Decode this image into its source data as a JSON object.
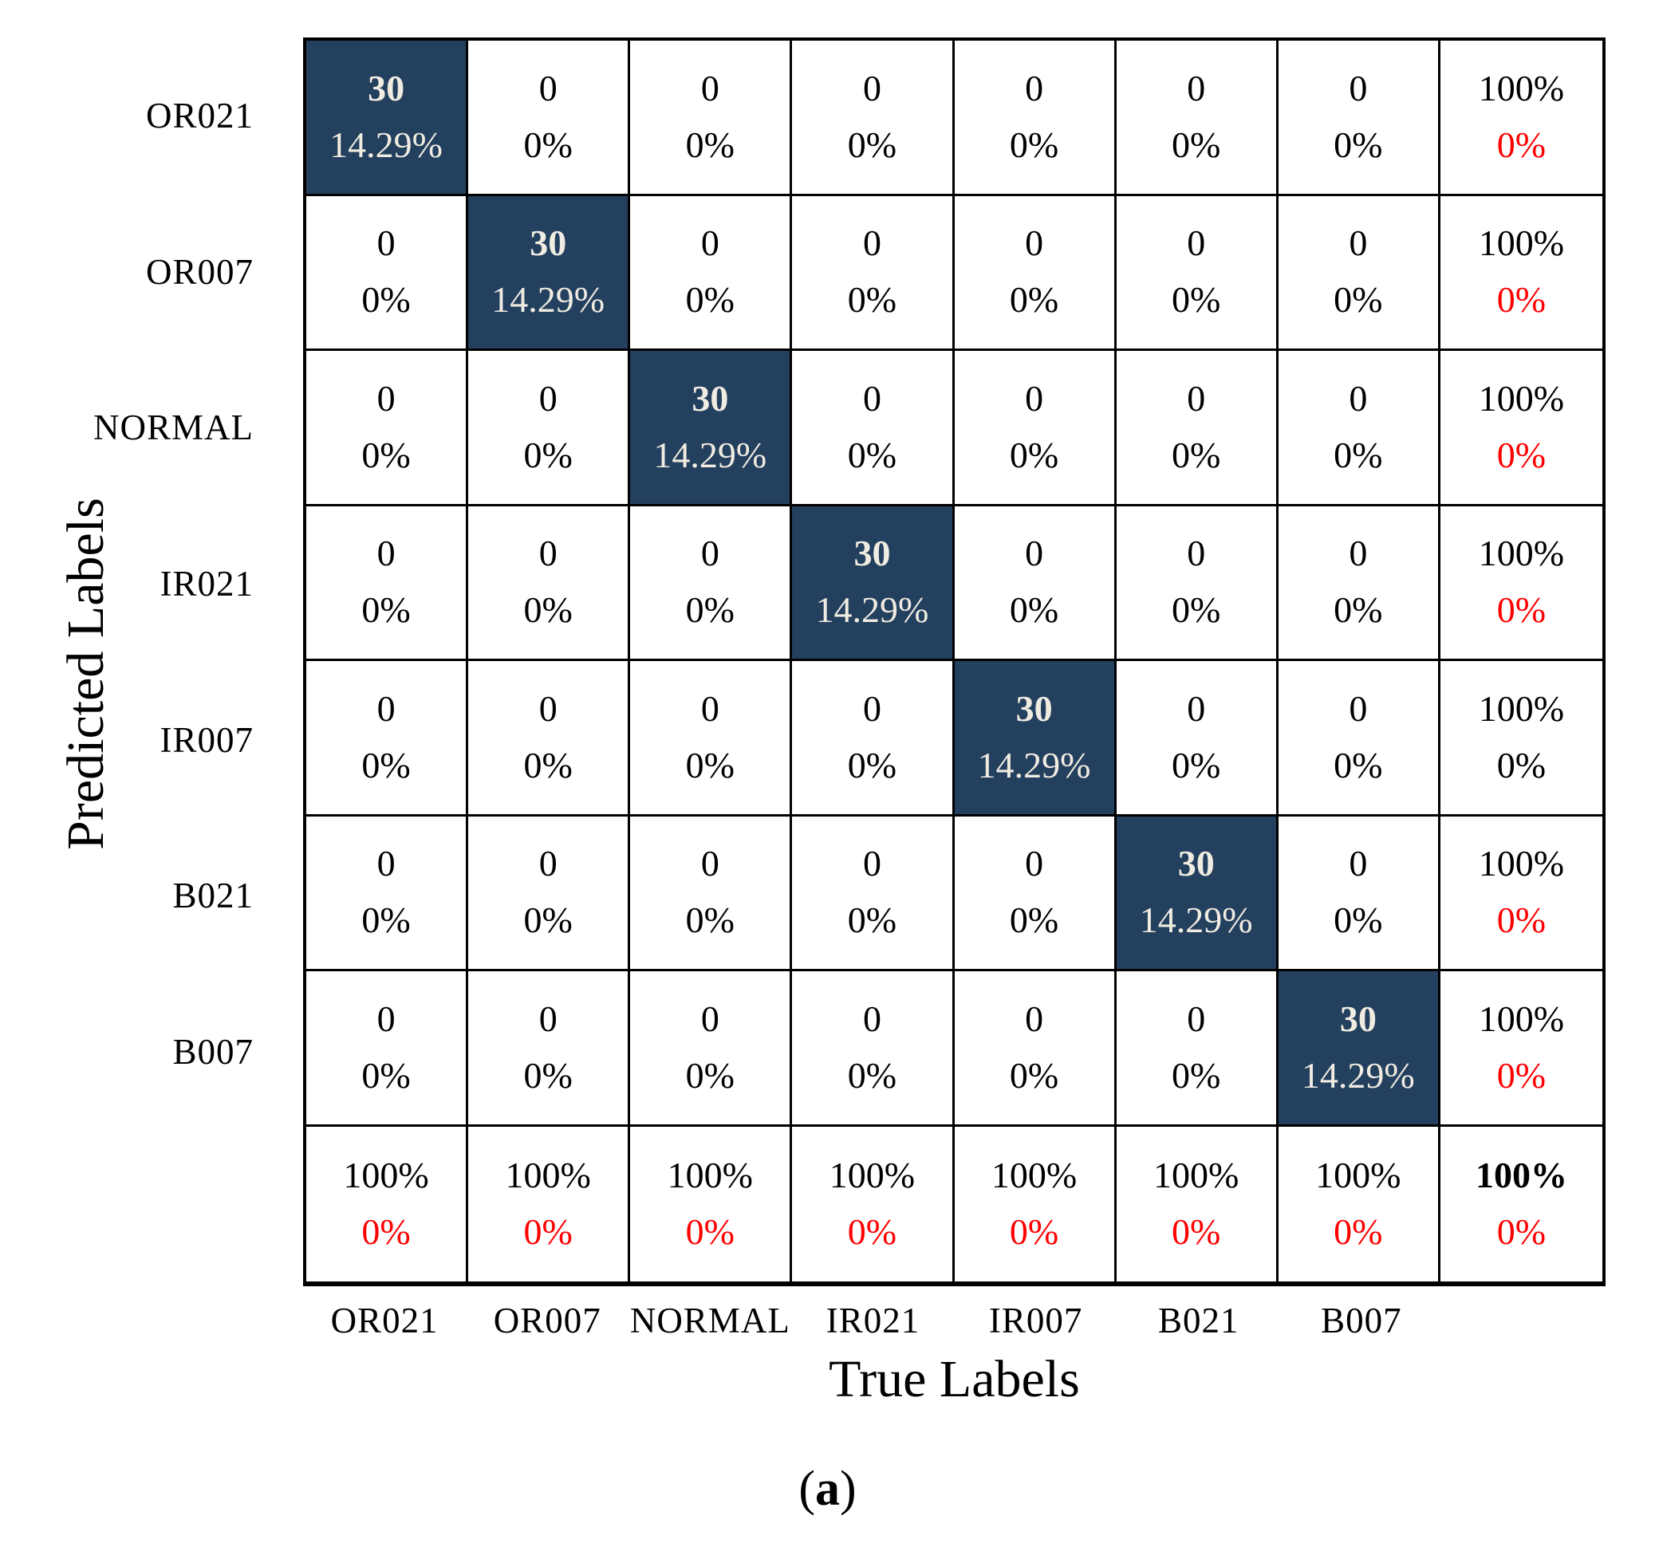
{
  "figure": {
    "caption_open": "(",
    "caption_letter": "a",
    "caption_close": ")"
  },
  "colors": {
    "diagonal_fill": "#24405f",
    "diagonal_text": "#f0ece1",
    "negative_percent_red": "#ff0000",
    "grid_line": "#000000",
    "cell_background": "#ffffff"
  },
  "chart_data": {
    "type": "heatmap",
    "subtype": "confusion-matrix",
    "xlabel": "True Labels",
    "ylabel": "Predicted Labels",
    "x_categories": [
      "OR021",
      "OR007",
      "NORMAL",
      "IR021",
      "IR007",
      "B021",
      "B007"
    ],
    "y_categories": [
      "OR021",
      "OR007",
      "NORMAL",
      "IR021",
      "IR007",
      "B021",
      "B007"
    ],
    "grid": true,
    "legend_position": "none",
    "counts": [
      [
        30,
        0,
        0,
        0,
        0,
        0,
        0
      ],
      [
        0,
        30,
        0,
        0,
        0,
        0,
        0
      ],
      [
        0,
        0,
        30,
        0,
        0,
        0,
        0
      ],
      [
        0,
        0,
        0,
        30,
        0,
        0,
        0
      ],
      [
        0,
        0,
        0,
        0,
        30,
        0,
        0
      ],
      [
        0,
        0,
        0,
        0,
        0,
        30,
        0
      ],
      [
        0,
        0,
        0,
        0,
        0,
        0,
        30
      ]
    ],
    "cell_pcts": [
      [
        "14.29%",
        "0%",
        "0%",
        "0%",
        "0%",
        "0%",
        "0%"
      ],
      [
        "0%",
        "14.29%",
        "0%",
        "0%",
        "0%",
        "0%",
        "0%"
      ],
      [
        "0%",
        "0%",
        "14.29%",
        "0%",
        "0%",
        "0%",
        "0%"
      ],
      [
        "0%",
        "0%",
        "0%",
        "14.29%",
        "0%",
        "0%",
        "0%"
      ],
      [
        "0%",
        "0%",
        "0%",
        "0%",
        "14.29%",
        "0%",
        "0%"
      ],
      [
        "0%",
        "0%",
        "0%",
        "0%",
        "0%",
        "14.29%",
        "0%"
      ],
      [
        "0%",
        "0%",
        "0%",
        "0%",
        "0%",
        "0%",
        "14.29%"
      ]
    ],
    "row_summary": [
      {
        "top": "100%",
        "bottom": "0%",
        "bottom_color": "red"
      },
      {
        "top": "100%",
        "bottom": "0%",
        "bottom_color": "red"
      },
      {
        "top": "100%",
        "bottom": "0%",
        "bottom_color": "red"
      },
      {
        "top": "100%",
        "bottom": "0%",
        "bottom_color": "red"
      },
      {
        "top": "100%",
        "bottom": "0%",
        "bottom_color": "black"
      },
      {
        "top": "100%",
        "bottom": "0%",
        "bottom_color": "red"
      },
      {
        "top": "100%",
        "bottom": "0%",
        "bottom_color": "red"
      }
    ],
    "col_summary": [
      {
        "top": "100%",
        "bottom": "0%",
        "bottom_color": "red"
      },
      {
        "top": "100%",
        "bottom": "0%",
        "bottom_color": "red"
      },
      {
        "top": "100%",
        "bottom": "0%",
        "bottom_color": "red"
      },
      {
        "top": "100%",
        "bottom": "0%",
        "bottom_color": "red"
      },
      {
        "top": "100%",
        "bottom": "0%",
        "bottom_color": "red"
      },
      {
        "top": "100%",
        "bottom": "0%",
        "bottom_color": "red"
      },
      {
        "top": "100%",
        "bottom": "0%",
        "bottom_color": "red"
      }
    ],
    "corner_total": {
      "top": "100%",
      "bottom": "0%",
      "bottom_color": "red",
      "top_bold": true
    }
  }
}
